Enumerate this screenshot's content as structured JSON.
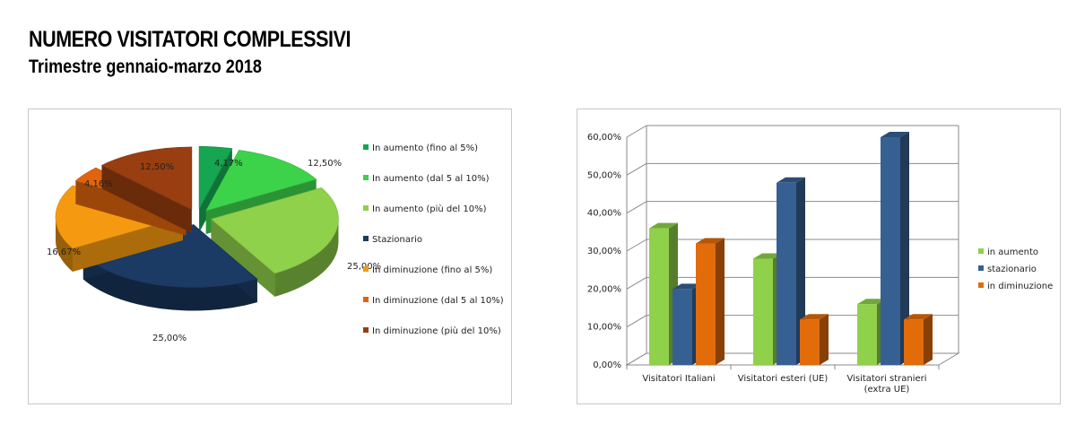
{
  "header": {
    "title": "NUMERO VISITATORI COMPLESSIVI",
    "subtitle": "Trimestre gennaio-marzo 2018"
  },
  "chart_data": [
    {
      "type": "pie",
      "title": "",
      "slices": [
        {
          "label": "In aumento (fino al 5%)",
          "value": 4.17,
          "display": "4,17%",
          "color": "#16a550"
        },
        {
          "label": "In aumento (dal 5 al 10%)",
          "value": 12.5,
          "display": "12,50%",
          "color": "#3cd34a"
        },
        {
          "label": "In aumento (più del 10%)",
          "value": 25.0,
          "display": "25,00%",
          "color": "#8fd14a"
        },
        {
          "label": "Stazionario",
          "value": 25.0,
          "display": "25,00%",
          "color": "#1b3a64"
        },
        {
          "label": "In diminuzione (fino al 5%)",
          "value": 16.67,
          "display": "16,67%",
          "color": "#f59a10"
        },
        {
          "label": "In diminuzione (dal 5 al 10%)",
          "value": 4.16,
          "display": "4,16%",
          "color": "#e0640e"
        },
        {
          "label": "In diminuzione (più del 10%)",
          "value": 12.5,
          "display": "12,50%",
          "color": "#983e10"
        }
      ],
      "legend_position": "right"
    },
    {
      "type": "bar",
      "title": "",
      "categories": [
        "Visitatori Italiani",
        "Visitatori esteri (UE)",
        "Visitatori stranieri (extra UE)"
      ],
      "series": [
        {
          "name": "in aumento",
          "values": [
            36,
            28,
            16
          ],
          "color": "#8fd14a"
        },
        {
          "name": "stazionario",
          "values": [
            20,
            48,
            60
          ],
          "color": "#376092"
        },
        {
          "name": "in diminuzione",
          "values": [
            32,
            12,
            12
          ],
          "color": "#e26b0a"
        }
      ],
      "yticks": [
        "0,00%",
        "10,00%",
        "20,00%",
        "30,00%",
        "40,00%",
        "50,00%",
        "60,00%"
      ],
      "ylim": [
        0,
        60
      ],
      "grid": true,
      "legend_position": "right"
    }
  ]
}
